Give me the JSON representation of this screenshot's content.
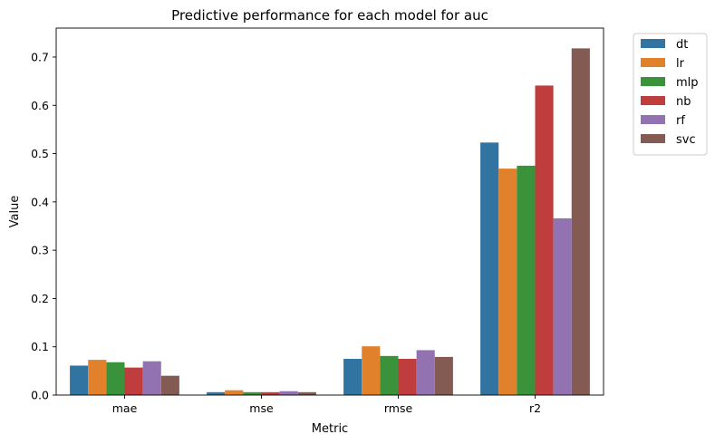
{
  "chart_data": {
    "type": "bar",
    "title": "Predictive performance for each model for auc",
    "xlabel": "Metric",
    "ylabel": "Value",
    "categories": [
      "mae",
      "mse",
      "rmse",
      "r2"
    ],
    "ylim": [
      0,
      0.76
    ],
    "yticks": [
      0.0,
      0.1,
      0.2,
      0.3,
      0.4,
      0.5,
      0.6,
      0.7
    ],
    "ytick_labels": [
      "0.0",
      "0.1",
      "0.2",
      "0.3",
      "0.4",
      "0.5",
      "0.6",
      "0.7"
    ],
    "grid": false,
    "legend_position": "outside-top-right",
    "series": [
      {
        "name": "dt",
        "color": "#3274a1",
        "values": [
          0.061,
          0.006,
          0.075,
          0.523
        ]
      },
      {
        "name": "lr",
        "color": "#e1812c",
        "values": [
          0.073,
          0.01,
          0.101,
          0.469
        ]
      },
      {
        "name": "mlp",
        "color": "#3a923a",
        "values": [
          0.068,
          0.006,
          0.081,
          0.475
        ]
      },
      {
        "name": "nb",
        "color": "#c03d3e",
        "values": [
          0.057,
          0.006,
          0.075,
          0.641
        ]
      },
      {
        "name": "rf",
        "color": "#9372b2",
        "values": [
          0.07,
          0.008,
          0.093,
          0.366
        ]
      },
      {
        "name": "svc",
        "color": "#845b53",
        "values": [
          0.04,
          0.006,
          0.079,
          0.718
        ]
      }
    ]
  }
}
